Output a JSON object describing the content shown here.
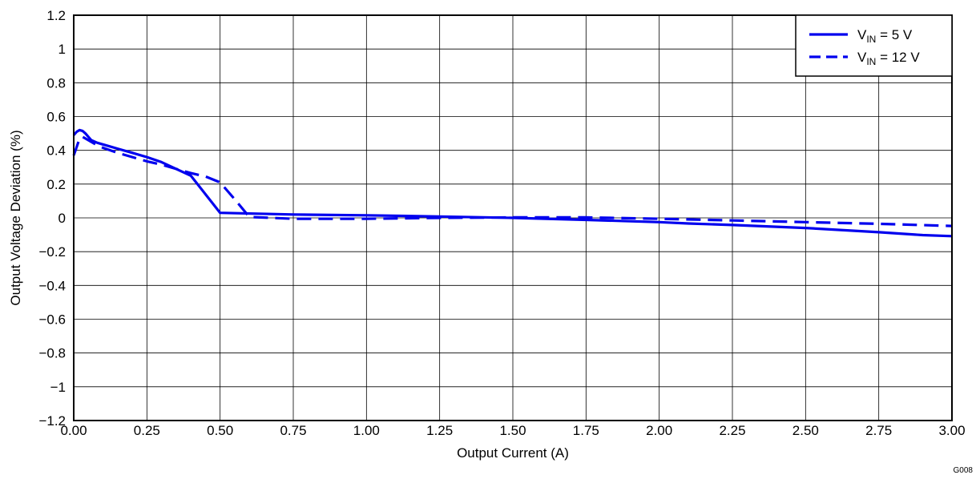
{
  "chart_data": {
    "type": "line",
    "title": "",
    "xlabel": "Output Current (A)",
    "ylabel": "Output Voltage Deviation (%)",
    "xlim": [
      0,
      3
    ],
    "ylim": [
      -1.2,
      1.2
    ],
    "x_ticks": [
      {
        "value": 0,
        "label": "0.00"
      },
      {
        "value": 0.25,
        "label": "0.25"
      },
      {
        "value": 0.5,
        "label": "0.50"
      },
      {
        "value": 0.75,
        "label": "0.75"
      },
      {
        "value": 1.0,
        "label": "1.00"
      },
      {
        "value": 1.25,
        "label": "1.25"
      },
      {
        "value": 1.5,
        "label": "1.50"
      },
      {
        "value": 1.75,
        "label": "1.75"
      },
      {
        "value": 2.0,
        "label": "2.00"
      },
      {
        "value": 2.25,
        "label": "2.25"
      },
      {
        "value": 2.5,
        "label": "2.50"
      },
      {
        "value": 2.75,
        "label": "2.75"
      },
      {
        "value": 3.0,
        "label": "3.00"
      }
    ],
    "y_ticks": [
      {
        "value": 1.2,
        "label": "1.2"
      },
      {
        "value": 1.0,
        "label": "1"
      },
      {
        "value": 0.8,
        "label": "0.8"
      },
      {
        "value": 0.6,
        "label": "0.6"
      },
      {
        "value": 0.4,
        "label": "0.4"
      },
      {
        "value": 0.2,
        "label": "0.2"
      },
      {
        "value": 0,
        "label": "0"
      },
      {
        "value": -0.2,
        "label": "−0.2"
      },
      {
        "value": -0.4,
        "label": "−0.4"
      },
      {
        "value": -0.6,
        "label": "−0.6"
      },
      {
        "value": -0.8,
        "label": "−0.8"
      },
      {
        "value": -1.0,
        "label": "−1"
      },
      {
        "value": -1.2,
        "label": "−1.2"
      }
    ],
    "grid": true,
    "legend_position": "top-right",
    "series": [
      {
        "label_main": "V",
        "label_sub": "IN",
        "label_rest": " = 5 V",
        "style": "solid",
        "color": "#0000ee",
        "points": [
          [
            0.0,
            0.49
          ],
          [
            0.01,
            0.51
          ],
          [
            0.02,
            0.52
          ],
          [
            0.03,
            0.515
          ],
          [
            0.04,
            0.5
          ],
          [
            0.06,
            0.46
          ],
          [
            0.08,
            0.445
          ],
          [
            0.1,
            0.435
          ],
          [
            0.15,
            0.41
          ],
          [
            0.2,
            0.385
          ],
          [
            0.25,
            0.36
          ],
          [
            0.3,
            0.33
          ],
          [
            0.35,
            0.29
          ],
          [
            0.4,
            0.25
          ],
          [
            0.45,
            0.14
          ],
          [
            0.5,
            0.03
          ],
          [
            0.75,
            0.02
          ],
          [
            1.0,
            0.015
          ],
          [
            1.25,
            0.008
          ],
          [
            1.5,
            0.0
          ],
          [
            1.75,
            -0.012
          ],
          [
            2.0,
            -0.025
          ],
          [
            2.1,
            -0.033
          ],
          [
            2.25,
            -0.042
          ],
          [
            2.5,
            -0.06
          ],
          [
            2.75,
            -0.085
          ],
          [
            2.9,
            -0.102
          ],
          [
            3.0,
            -0.108
          ]
        ]
      },
      {
        "label_main": "V",
        "label_sub": "IN",
        "label_rest": " = 12 V",
        "style": "dashed",
        "color": "#0000ee",
        "points": [
          [
            0.0,
            0.37
          ],
          [
            0.01,
            0.42
          ],
          [
            0.02,
            0.47
          ],
          [
            0.03,
            0.48
          ],
          [
            0.04,
            0.47
          ],
          [
            0.06,
            0.45
          ],
          [
            0.08,
            0.43
          ],
          [
            0.1,
            0.415
          ],
          [
            0.15,
            0.385
          ],
          [
            0.2,
            0.36
          ],
          [
            0.25,
            0.335
          ],
          [
            0.3,
            0.315
          ],
          [
            0.35,
            0.29
          ],
          [
            0.4,
            0.265
          ],
          [
            0.45,
            0.245
          ],
          [
            0.5,
            0.21
          ],
          [
            0.55,
            0.11
          ],
          [
            0.6,
            0.005
          ],
          [
            0.75,
            -0.005
          ],
          [
            1.0,
            -0.005
          ],
          [
            1.25,
            0.0
          ],
          [
            1.5,
            0.003
          ],
          [
            1.75,
            0.003
          ],
          [
            2.0,
            -0.005
          ],
          [
            2.25,
            -0.015
          ],
          [
            2.5,
            -0.025
          ],
          [
            2.75,
            -0.035
          ],
          [
            3.0,
            -0.048
          ]
        ]
      }
    ]
  },
  "figure_id": "G008"
}
